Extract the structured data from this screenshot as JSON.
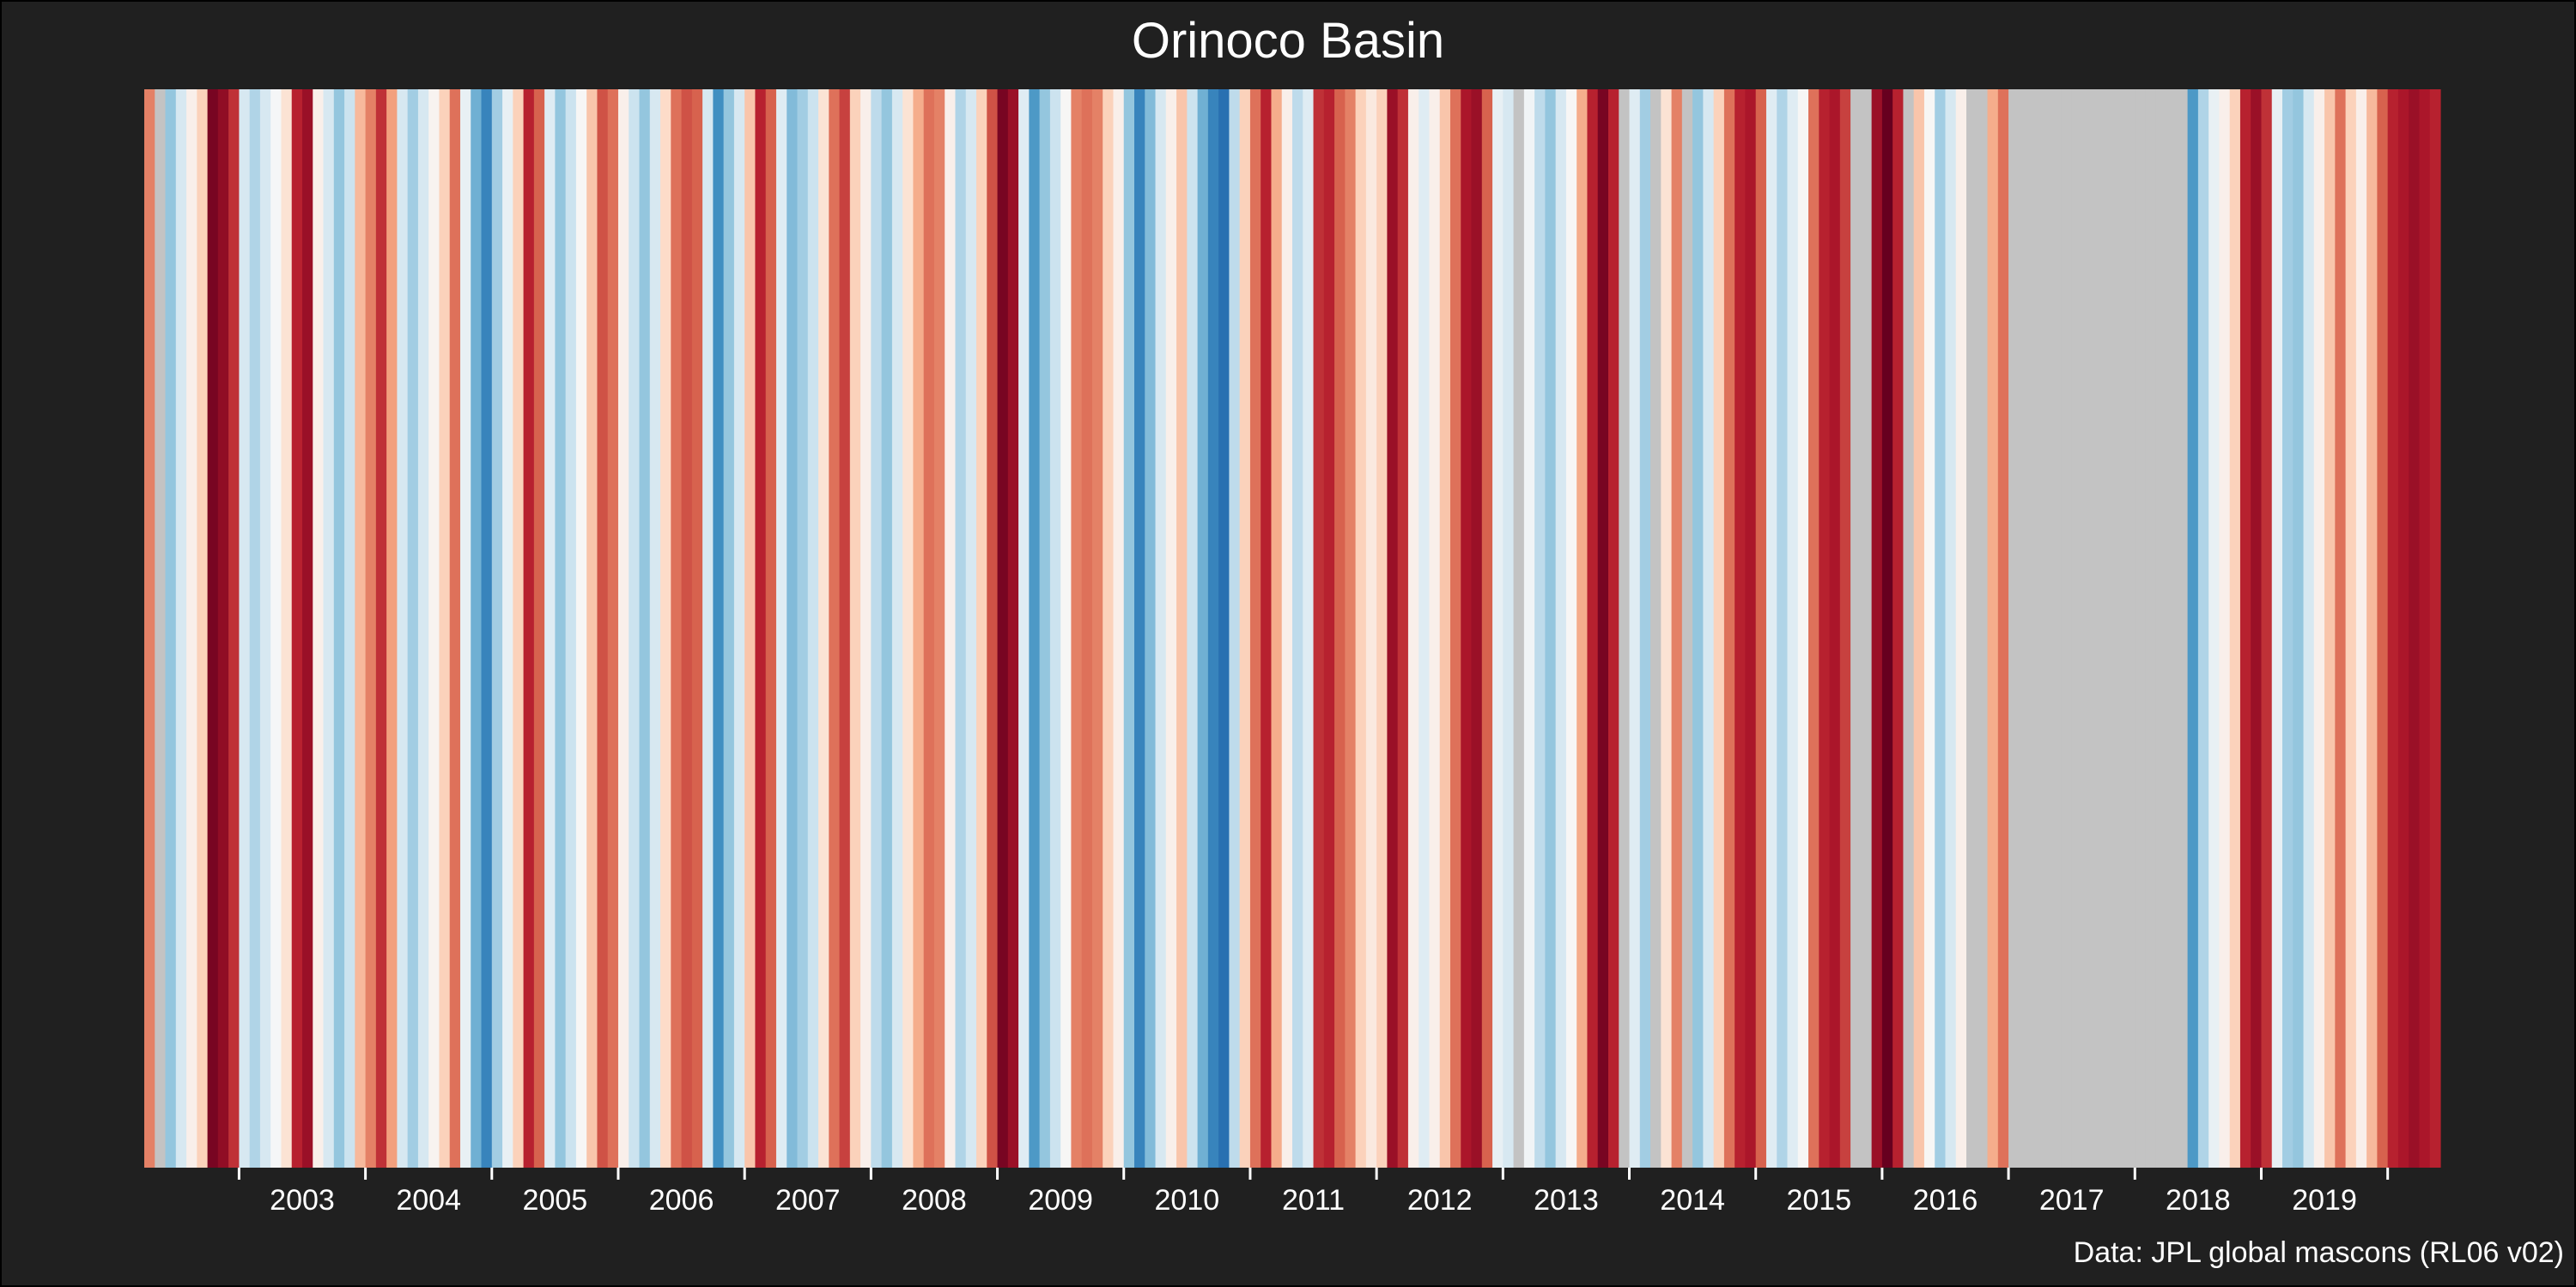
{
  "title": "Orinoco Basin",
  "source_note": "Data: JPL global mascons (RL06 v02)",
  "colors": {
    "background": "#202020",
    "missing": "#c3c3c3",
    "text": "#ffffff",
    "palette_blue_to_red": [
      "#2166ac",
      "#4393c3",
      "#92c5de",
      "#d1e5f0",
      "#f7f7f7",
      "#fddbc7",
      "#f4a582",
      "#d6604d",
      "#b2182b",
      "#67001f"
    ]
  },
  "chart_data": {
    "type": "heatmap",
    "title": "Orinoco Basin",
    "description_units": "normalized anomaly, -1 (blue) to +1 (red); null = missing (grey)",
    "x_axis": {
      "tick_labels": [
        "2003",
        "2004",
        "2005",
        "2006",
        "2007",
        "2008",
        "2009",
        "2010",
        "2011",
        "2012",
        "2013",
        "2014",
        "2015",
        "2016",
        "2017",
        "2018",
        "2019"
      ],
      "range": [
        "2002-04",
        "2020-05"
      ]
    },
    "stripes": [
      {
        "date": "2002-04",
        "value": 0.45
      },
      {
        "date": "2002-05",
        "value": null
      },
      {
        "date": "2002-06",
        "value": -0.55
      },
      {
        "date": "2002-07",
        "value": -0.3
      },
      {
        "date": "2002-08",
        "value": -0.05
      },
      {
        "date": "2002-09",
        "value": 0.15
      },
      {
        "date": "2002-10",
        "value": 0.95
      },
      {
        "date": "2002-11",
        "value": 0.88
      },
      {
        "date": "2002-12",
        "value": 0.7
      },
      {
        "date": "2003-01",
        "value": -0.3
      },
      {
        "date": "2003-02",
        "value": -0.45
      },
      {
        "date": "2003-03",
        "value": -0.3
      },
      {
        "date": "2003-04",
        "value": -0.12
      },
      {
        "date": "2003-05",
        "value": 0.05
      },
      {
        "date": "2003-06",
        "value": 0.75
      },
      {
        "date": "2003-07",
        "value": 0.85
      },
      {
        "date": "2003-08",
        "value": -0.05
      },
      {
        "date": "2003-09",
        "value": -0.3
      },
      {
        "date": "2003-10",
        "value": -0.55
      },
      {
        "date": "2003-11",
        "value": -0.35
      },
      {
        "date": "2003-12",
        "value": 0.25
      },
      {
        "date": "2004-01",
        "value": 0.45
      },
      {
        "date": "2004-02",
        "value": 0.7
      },
      {
        "date": "2004-03",
        "value": 0.35
      },
      {
        "date": "2004-04",
        "value": -0.3
      },
      {
        "date": "2004-05",
        "value": -0.5
      },
      {
        "date": "2004-06",
        "value": -0.3
      },
      {
        "date": "2004-07",
        "value": -0.08
      },
      {
        "date": "2004-08",
        "value": 0.15
      },
      {
        "date": "2004-09",
        "value": 0.5
      },
      {
        "date": "2004-10",
        "value": -0.2
      },
      {
        "date": "2004-11",
        "value": -0.65
      },
      {
        "date": "2004-12",
        "value": -0.85
      },
      {
        "date": "2005-01",
        "value": -0.5
      },
      {
        "date": "2005-02",
        "value": -0.2
      },
      {
        "date": "2005-03",
        "value": 0.15
      },
      {
        "date": "2005-04",
        "value": 0.75
      },
      {
        "date": "2005-05",
        "value": 0.55
      },
      {
        "date": "2005-06",
        "value": -0.25
      },
      {
        "date": "2005-07",
        "value": -0.55
      },
      {
        "date": "2005-08",
        "value": -0.35
      },
      {
        "date": "2005-09",
        "value": -0.1
      },
      {
        "date": "2005-10",
        "value": 0.2
      },
      {
        "date": "2005-11",
        "value": 0.6
      },
      {
        "date": "2005-12",
        "value": 0.5
      },
      {
        "date": "2006-01",
        "value": -0.05
      },
      {
        "date": "2006-02",
        "value": -0.35
      },
      {
        "date": "2006-03",
        "value": -0.55
      },
      {
        "date": "2006-04",
        "value": -0.3
      },
      {
        "date": "2006-05",
        "value": 0.1
      },
      {
        "date": "2006-06",
        "value": 0.5
      },
      {
        "date": "2006-07",
        "value": 0.6
      },
      {
        "date": "2006-08",
        "value": 0.55
      },
      {
        "date": "2006-09",
        "value": -0.3
      },
      {
        "date": "2006-10",
        "value": -0.8
      },
      {
        "date": "2006-11",
        "value": -0.55
      },
      {
        "date": "2006-12",
        "value": -0.3
      },
      {
        "date": "2007-01",
        "value": 0.2
      },
      {
        "date": "2007-02",
        "value": 0.75
      },
      {
        "date": "2007-03",
        "value": 0.55
      },
      {
        "date": "2007-04",
        "value": -0.25
      },
      {
        "date": "2007-05",
        "value": -0.6
      },
      {
        "date": "2007-06",
        "value": -0.5
      },
      {
        "date": "2007-07",
        "value": -0.35
      },
      {
        "date": "2007-08",
        "value": 0.05
      },
      {
        "date": "2007-09",
        "value": 0.5
      },
      {
        "date": "2007-10",
        "value": 0.65
      },
      {
        "date": "2007-11",
        "value": 0.15
      },
      {
        "date": "2007-12",
        "value": -0.05
      },
      {
        "date": "2008-01",
        "value": -0.4
      },
      {
        "date": "2008-02",
        "value": -0.55
      },
      {
        "date": "2008-03",
        "value": -0.3
      },
      {
        "date": "2008-04",
        "value": 0.05
      },
      {
        "date": "2008-05",
        "value": 0.3
      },
      {
        "date": "2008-06",
        "value": 0.5
      },
      {
        "date": "2008-07",
        "value": 0.45
      },
      {
        "date": "2008-08",
        "value": -0.05
      },
      {
        "date": "2008-09",
        "value": -0.45
      },
      {
        "date": "2008-10",
        "value": -0.3
      },
      {
        "date": "2008-11",
        "value": 0.15
      },
      {
        "date": "2008-12",
        "value": 0.6
      },
      {
        "date": "2009-01",
        "value": 0.95
      },
      {
        "date": "2009-02",
        "value": 0.85
      },
      {
        "date": "2009-03",
        "value": -0.25
      },
      {
        "date": "2009-04",
        "value": -0.75
      },
      {
        "date": "2009-05",
        "value": -0.55
      },
      {
        "date": "2009-06",
        "value": -0.35
      },
      {
        "date": "2009-07",
        "value": -0.1
      },
      {
        "date": "2009-08",
        "value": 0.45
      },
      {
        "date": "2009-09",
        "value": 0.5
      },
      {
        "date": "2009-10",
        "value": 0.45
      },
      {
        "date": "2009-11",
        "value": 0.15
      },
      {
        "date": "2009-12",
        "value": -0.05
      },
      {
        "date": "2010-01",
        "value": -0.55
      },
      {
        "date": "2010-02",
        "value": -0.85
      },
      {
        "date": "2010-03",
        "value": -0.6
      },
      {
        "date": "2010-04",
        "value": -0.3
      },
      {
        "date": "2010-05",
        "value": -0.05
      },
      {
        "date": "2010-06",
        "value": 0.2
      },
      {
        "date": "2010-07",
        "value": -0.35
      },
      {
        "date": "2010-08",
        "value": -0.65
      },
      {
        "date": "2010-09",
        "value": -0.85
      },
      {
        "date": "2010-10",
        "value": -0.95
      },
      {
        "date": "2010-11",
        "value": -0.4
      },
      {
        "date": "2010-12",
        "value": 0.15
      },
      {
        "date": "2011-01",
        "value": 0.5
      },
      {
        "date": "2011-02",
        "value": 0.75
      },
      {
        "date": "2011-03",
        "value": 0.3
      },
      {
        "date": "2011-04",
        "value": -0.05
      },
      {
        "date": "2011-05",
        "value": -0.4
      },
      {
        "date": "2011-06",
        "value": -0.25
      },
      {
        "date": "2011-07",
        "value": 0.7
      },
      {
        "date": "2011-08",
        "value": 0.75
      },
      {
        "date": "2011-09",
        "value": 0.55
      },
      {
        "date": "2011-10",
        "value": 0.45
      },
      {
        "date": "2011-11",
        "value": 0.15
      },
      {
        "date": "2011-12",
        "value": 0.0
      },
      {
        "date": "2012-01",
        "value": 0.15
      },
      {
        "date": "2012-02",
        "value": 0.85
      },
      {
        "date": "2012-03",
        "value": 0.7
      },
      {
        "date": "2012-04",
        "value": -0.05
      },
      {
        "date": "2012-05",
        "value": -0.25
      },
      {
        "date": "2012-06",
        "value": -0.05
      },
      {
        "date": "2012-07",
        "value": 0.2
      },
      {
        "date": "2012-08",
        "value": 0.5
      },
      {
        "date": "2012-09",
        "value": 0.8
      },
      {
        "date": "2012-10",
        "value": 0.85
      },
      {
        "date": "2012-11",
        "value": 0.55
      },
      {
        "date": "2012-12",
        "value": -0.2
      },
      {
        "date": "2013-01",
        "value": -0.3
      },
      {
        "date": "2013-02",
        "value": null
      },
      {
        "date": "2013-03",
        "value": -0.15
      },
      {
        "date": "2013-04",
        "value": -0.4
      },
      {
        "date": "2013-05",
        "value": -0.55
      },
      {
        "date": "2013-06",
        "value": -0.3
      },
      {
        "date": "2013-07",
        "value": -0.1
      },
      {
        "date": "2013-08",
        "value": 0.3
      },
      {
        "date": "2013-09",
        "value": 0.75
      },
      {
        "date": "2013-10",
        "value": 0.95
      },
      {
        "date": "2013-11",
        "value": 0.75
      },
      {
        "date": "2013-12",
        "value": null
      },
      {
        "date": "2014-01",
        "value": -0.25
      },
      {
        "date": "2014-02",
        "value": -0.5
      },
      {
        "date": "2014-03",
        "value": null
      },
      {
        "date": "2014-04",
        "value": 0.05
      },
      {
        "date": "2014-05",
        "value": 0.45
      },
      {
        "date": "2014-06",
        "value": null
      },
      {
        "date": "2014-07",
        "value": -0.55
      },
      {
        "date": "2014-08",
        "value": -0.3
      },
      {
        "date": "2014-09",
        "value": 0.15
      },
      {
        "date": "2014-10",
        "value": 0.5
      },
      {
        "date": "2014-11",
        "value": 0.75
      },
      {
        "date": "2014-12",
        "value": 0.8
      },
      {
        "date": "2015-01",
        "value": 0.55
      },
      {
        "date": "2015-02",
        "value": -0.25
      },
      {
        "date": "2015-03",
        "value": -0.45
      },
      {
        "date": "2015-04",
        "value": -0.25
      },
      {
        "date": "2015-05",
        "value": -0.1
      },
      {
        "date": "2015-06",
        "value": 0.5
      },
      {
        "date": "2015-07",
        "value": 0.75
      },
      {
        "date": "2015-08",
        "value": 0.8
      },
      {
        "date": "2015-09",
        "value": 0.65
      },
      {
        "date": "2015-10",
        "value": null
      },
      {
        "date": "2015-11",
        "value": null
      },
      {
        "date": "2015-12",
        "value": 0.85
      },
      {
        "date": "2016-01",
        "value": 1.0
      },
      {
        "date": "2016-02",
        "value": 0.75
      },
      {
        "date": "2016-03",
        "value": null
      },
      {
        "date": "2016-04",
        "value": 0.2
      },
      {
        "date": "2016-05",
        "value": -0.1
      },
      {
        "date": "2016-06",
        "value": -0.5
      },
      {
        "date": "2016-07",
        "value": -0.3
      },
      {
        "date": "2016-08",
        "value": -0.05
      },
      {
        "date": "2016-09",
        "value": null
      },
      {
        "date": "2016-10",
        "value": null
      },
      {
        "date": "2016-11",
        "value": 0.3
      },
      {
        "date": "2016-12",
        "value": 0.5
      },
      {
        "date": "2017-01",
        "value": null
      },
      {
        "date": "2017-02",
        "value": null
      },
      {
        "date": "2017-03",
        "value": null
      },
      {
        "date": "2017-04",
        "value": null
      },
      {
        "date": "2017-05",
        "value": null
      },
      {
        "date": "2017-06",
        "value": null
      },
      {
        "date": "2017-07",
        "value": null
      },
      {
        "date": "2017-08",
        "value": null
      },
      {
        "date": "2017-09",
        "value": null
      },
      {
        "date": "2017-10",
        "value": null
      },
      {
        "date": "2017-11",
        "value": null
      },
      {
        "date": "2017-12",
        "value": null
      },
      {
        "date": "2018-01",
        "value": null
      },
      {
        "date": "2018-02",
        "value": null
      },
      {
        "date": "2018-03",
        "value": null
      },
      {
        "date": "2018-04",
        "value": null
      },
      {
        "date": "2018-05",
        "value": null
      },
      {
        "date": "2018-06",
        "value": -0.75
      },
      {
        "date": "2018-07",
        "value": -0.45
      },
      {
        "date": "2018-08",
        "value": -0.2
      },
      {
        "date": "2018-09",
        "value": -0.05
      },
      {
        "date": "2018-10",
        "value": 0.15
      },
      {
        "date": "2018-11",
        "value": 0.75
      },
      {
        "date": "2018-12",
        "value": 0.85
      },
      {
        "date": "2019-01",
        "value": 0.7
      },
      {
        "date": "2019-02",
        "value": -0.2
      },
      {
        "date": "2019-03",
        "value": -0.5
      },
      {
        "date": "2019-04",
        "value": -0.55
      },
      {
        "date": "2019-05",
        "value": -0.3
      },
      {
        "date": "2019-06",
        "value": -0.05
      },
      {
        "date": "2019-07",
        "value": 0.2
      },
      {
        "date": "2019-08",
        "value": 0.5
      },
      {
        "date": "2019-09",
        "value": 0.15
      },
      {
        "date": "2019-10",
        "value": -0.05
      },
      {
        "date": "2019-11",
        "value": 0.25
      },
      {
        "date": "2019-12",
        "value": 0.55
      },
      {
        "date": "2020-01",
        "value": 0.75
      },
      {
        "date": "2020-02",
        "value": 0.8
      },
      {
        "date": "2020-03",
        "value": 0.85
      },
      {
        "date": "2020-04",
        "value": 0.8
      },
      {
        "date": "2020-05",
        "value": 0.75
      }
    ]
  }
}
